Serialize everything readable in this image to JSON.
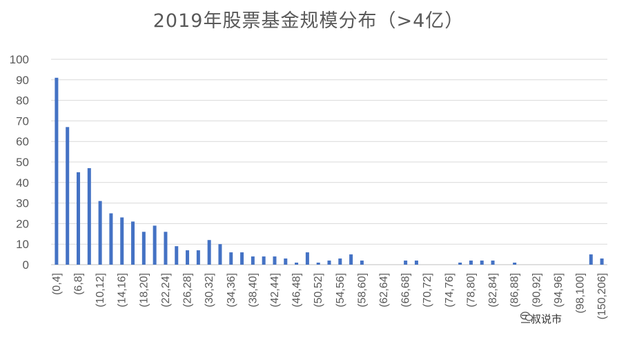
{
  "chart_data": {
    "type": "bar",
    "title": "2019年股票基金规模分布（>4亿）",
    "xlabel": "",
    "ylabel": "",
    "ylim": [
      0,
      100
    ],
    "yticks": [
      0,
      10,
      20,
      30,
      40,
      50,
      60,
      70,
      80,
      90,
      100
    ],
    "grid": true,
    "legend": "none",
    "bar_color": "#4472c4",
    "categories": [
      "(0,4]",
      "(4,6]",
      "(6,8]",
      "(8,10]",
      "(10,12]",
      "(12,14]",
      "(14,16]",
      "(16,18]",
      "(18,20]",
      "(20,22]",
      "(22,24]",
      "(24,26]",
      "(26,28]",
      "(28,30]",
      "(30,32]",
      "(32,34]",
      "(34,36]",
      "(36,38]",
      "(38,40]",
      "(40,42]",
      "(42,44]",
      "(44,46]",
      "(46,48]",
      "(48,50]",
      "(50,52]",
      "(52,54]",
      "(54,56]",
      "(56,58]",
      "(58,60]",
      "(60,62]",
      "(62,64]",
      "(64,66]",
      "(66,68]",
      "(68,70]",
      "(70,72]",
      "(72,74]",
      "(74,76]",
      "(76,78]",
      "(78,80]",
      "(80,82]",
      "(82,84]",
      "(84,86]",
      "(86,88]",
      "(88,90]",
      "(90,92]",
      "(92,94]",
      "(94,96]",
      "(96,98]",
      "(98,100]",
      "(100,150]",
      "(150,206]"
    ],
    "values": [
      91,
      67,
      45,
      47,
      31,
      25,
      23,
      21,
      16,
      19,
      16,
      9,
      7,
      7,
      12,
      10,
      6,
      6,
      4,
      4,
      4,
      3,
      1,
      6,
      1,
      2,
      3,
      5,
      2,
      0,
      0,
      0,
      2,
      2,
      0,
      0,
      0,
      1,
      2,
      2,
      2,
      0,
      1,
      0,
      0,
      0,
      0,
      0,
      0,
      5,
      3
    ],
    "xtick_labels": [
      "(0,4]",
      "(6,8]",
      "(10,12]",
      "(14,16]",
      "(18,20]",
      "(22,24]",
      "(26,28]",
      "(30,32]",
      "(34,36]",
      "(38,40]",
      "(42,44]",
      "(46,48]",
      "(50,52]",
      "(54,56]",
      "(58,60]",
      "(62,64]",
      "(66,68]",
      "(70,72]",
      "(74,76]",
      "(78,80]",
      "(82,84]",
      "(86,88]",
      "(90,92]",
      "(94,96]",
      "(98,100]",
      "(150,206]"
    ]
  },
  "watermark": {
    "text": "三叔说市",
    "icon": "wechat-icon"
  }
}
